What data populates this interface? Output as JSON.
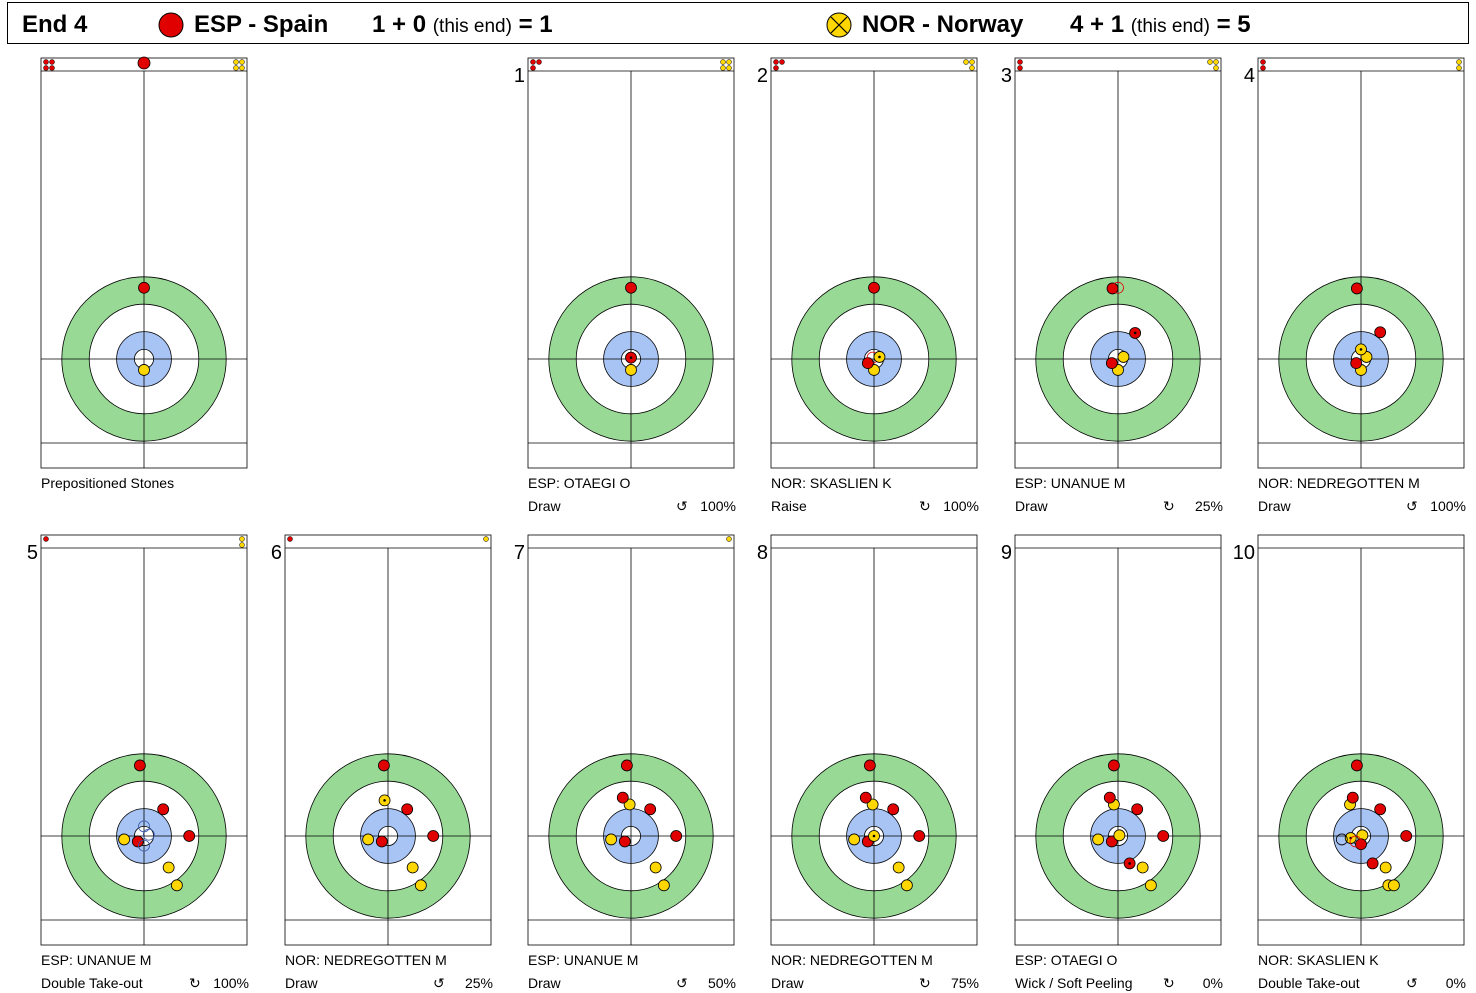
{
  "header": {
    "end_label": "End 4",
    "team1": {
      "name": "ESP - Spain",
      "score_text": "1 + 0",
      "this_end": "(this end)",
      "total": "= 1",
      "color": "#e00000"
    },
    "team2": {
      "name": "NOR - Norway",
      "score_text": "4 + 1",
      "this_end": "(this end)",
      "total": "= 5",
      "color": "#ffd700"
    }
  },
  "colors": {
    "ring_outer": "#99d996",
    "ring_inner": "#a8c4f4",
    "red_stone": "#e00000",
    "yellow_stone": "#ffd700"
  },
  "sheets": [
    {
      "number": "",
      "player": "Prepositioned Stones",
      "shot": "",
      "rotation": "",
      "pct": "",
      "remaining": {
        "red": 4,
        "yellow": 4
      },
      "stones": [
        {
          "team": "red",
          "x": 0,
          "y": -5.2
        },
        {
          "team": "yellow",
          "x": 0,
          "y": 0.8
        }
      ]
    },
    {
      "number": "1",
      "player": "ESP: OTAEGI O",
      "shot": "Draw",
      "rotation": "↺",
      "pct": "100%",
      "remaining": {
        "red": 3,
        "yellow": 4
      },
      "stones": [
        {
          "team": "red",
          "x": 0,
          "y": -5.2
        },
        {
          "team": "yellow",
          "x": 0,
          "y": 0.8
        },
        {
          "team": "red",
          "x": 0,
          "y": -0.1,
          "marked": true
        }
      ]
    },
    {
      "number": "2",
      "player": "NOR: SKASLIEN K",
      "shot": "Raise",
      "rotation": "↻",
      "pct": "100%",
      "remaining": {
        "red": 3,
        "yellow": 3
      },
      "stones": [
        {
          "team": "red",
          "x": 0,
          "y": -5.2
        },
        {
          "team": "yellow",
          "x": 0,
          "y": 0.8
        },
        {
          "team": "red",
          "x": -0.45,
          "y": 0.3
        },
        {
          "team": "red",
          "x": -0.1,
          "y": -0.1,
          "ghost": true
        },
        {
          "team": "yellow",
          "x": 0.4,
          "y": -0.15,
          "marked": true
        }
      ]
    },
    {
      "number": "3",
      "player": "ESP: UNANUE M",
      "shot": "Draw",
      "rotation": "↻",
      "pct": "25%",
      "remaining": {
        "red": 2,
        "yellow": 3
      },
      "stones": [
        {
          "team": "red",
          "x": -0.4,
          "y": -5.15
        },
        {
          "team": "red",
          "x": 0,
          "y": -5.2,
          "ghost": true
        },
        {
          "team": "red",
          "x": 1.25,
          "y": -1.9,
          "marked": true
        },
        {
          "team": "yellow",
          "x": 0,
          "y": 0.8
        },
        {
          "team": "yellow",
          "x": 0.4,
          "y": -0.15
        },
        {
          "team": "red",
          "x": -0.45,
          "y": 0.3
        }
      ]
    },
    {
      "number": "4",
      "player": "NOR: NEDREGOTTEN M",
      "shot": "Draw",
      "rotation": "↺",
      "pct": "100%",
      "remaining": {
        "red": 2,
        "yellow": 2
      },
      "stones": [
        {
          "team": "red",
          "x": -0.3,
          "y": -5.15
        },
        {
          "team": "red",
          "x": 1.4,
          "y": -1.95
        },
        {
          "team": "yellow",
          "x": 0,
          "y": 0.8
        },
        {
          "team": "yellow",
          "x": 0.4,
          "y": -0.15
        },
        {
          "team": "red",
          "x": -0.35,
          "y": 0.3
        },
        {
          "team": "yellow",
          "x": 0,
          "y": -0.7,
          "marked": true
        }
      ]
    },
    {
      "number": "5",
      "player": "ESP: UNANUE M",
      "shot": "Double Take-out",
      "rotation": "↻",
      "pct": "100%",
      "remaining": {
        "red": 1,
        "yellow": 2
      },
      "stones": [
        {
          "team": "red",
          "x": -0.3,
          "y": -5.15
        },
        {
          "team": "red",
          "x": 1.4,
          "y": -1.95
        },
        {
          "team": "red",
          "x": 3.3,
          "y": 0
        },
        {
          "team": "yellow",
          "x": -1.45,
          "y": 0.25
        },
        {
          "team": "red",
          "x": -0.45,
          "y": 0.4
        },
        {
          "team": "yellow",
          "x": 1.8,
          "y": 2.3
        },
        {
          "team": "yellow",
          "x": 2.4,
          "y": 3.6
        },
        {
          "team": "blue",
          "x": 0,
          "y": -0.7,
          "ghost": true
        },
        {
          "team": "blue",
          "x": 0.35,
          "y": -0.1,
          "ghost": true
        },
        {
          "team": "blue",
          "x": 0,
          "y": 0.7,
          "ghost": true
        }
      ]
    },
    {
      "number": "6",
      "player": "NOR: NEDREGOTTEN M",
      "shot": "Draw",
      "rotation": "↺",
      "pct": "25%",
      "remaining": {
        "red": 1,
        "yellow": 1
      },
      "stones": [
        {
          "team": "red",
          "x": -0.3,
          "y": -5.15
        },
        {
          "team": "red",
          "x": 1.4,
          "y": -1.95
        },
        {
          "team": "red",
          "x": 3.3,
          "y": 0
        },
        {
          "team": "yellow",
          "x": -1.45,
          "y": 0.25
        },
        {
          "team": "red",
          "x": -0.45,
          "y": 0.4
        },
        {
          "team": "yellow",
          "x": 1.8,
          "y": 2.3
        },
        {
          "team": "yellow",
          "x": 2.4,
          "y": 3.6
        },
        {
          "team": "yellow",
          "x": -0.25,
          "y": -2.6,
          "marked": true
        }
      ]
    },
    {
      "number": "7",
      "player": "ESP: UNANUE M",
      "shot": "Draw",
      "rotation": "↺",
      "pct": "50%",
      "remaining": {
        "red": 0,
        "yellow": 1
      },
      "stones": [
        {
          "team": "red",
          "x": -0.3,
          "y": -5.15
        },
        {
          "team": "red",
          "x": 1.4,
          "y": -1.95
        },
        {
          "team": "red",
          "x": 3.3,
          "y": 0
        },
        {
          "team": "yellow",
          "x": -1.45,
          "y": 0.25
        },
        {
          "team": "red",
          "x": -0.45,
          "y": 0.4
        },
        {
          "team": "yellow",
          "x": 1.8,
          "y": 2.3
        },
        {
          "team": "yellow",
          "x": 2.4,
          "y": 3.6
        },
        {
          "team": "yellow",
          "x": -0.1,
          "y": -2.3
        },
        {
          "team": "red",
          "x": -0.6,
          "y": -2.8
        }
      ]
    },
    {
      "number": "8",
      "player": "NOR: NEDREGOTTEN M",
      "shot": "Draw",
      "rotation": "↻",
      "pct": "75%",
      "remaining": {
        "red": 0,
        "yellow": 0
      },
      "stones": [
        {
          "team": "red",
          "x": -0.3,
          "y": -5.15
        },
        {
          "team": "red",
          "x": 1.4,
          "y": -1.95
        },
        {
          "team": "red",
          "x": 3.3,
          "y": 0
        },
        {
          "team": "yellow",
          "x": -1.45,
          "y": 0.25
        },
        {
          "team": "red",
          "x": -0.45,
          "y": 0.4
        },
        {
          "team": "yellow",
          "x": 1.8,
          "y": 2.3
        },
        {
          "team": "yellow",
          "x": 2.4,
          "y": 3.6
        },
        {
          "team": "yellow",
          "x": -0.1,
          "y": -2.3
        },
        {
          "team": "red",
          "x": -0.6,
          "y": -2.8
        },
        {
          "team": "yellow",
          "x": 0,
          "y": 0,
          "marked": true
        }
      ]
    },
    {
      "number": "9",
      "player": "ESP: OTAEGI O",
      "shot": "Wick / Soft Peeling",
      "rotation": "↻",
      "pct": "0%",
      "remaining": {
        "red": 0,
        "yellow": 0
      },
      "stones": [
        {
          "team": "red",
          "x": -0.3,
          "y": -5.15
        },
        {
          "team": "red",
          "x": 1.4,
          "y": -1.95
        },
        {
          "team": "red",
          "x": 3.3,
          "y": 0
        },
        {
          "team": "yellow",
          "x": -1.45,
          "y": 0.25
        },
        {
          "team": "red",
          "x": -0.45,
          "y": 0.4
        },
        {
          "team": "yellow",
          "x": 1.8,
          "y": 2.3
        },
        {
          "team": "yellow",
          "x": 2.4,
          "y": 3.6
        },
        {
          "team": "yellow",
          "x": -0.3,
          "y": -2.3
        },
        {
          "team": "red",
          "x": -0.6,
          "y": -2.8
        },
        {
          "team": "yellow",
          "x": 0.1,
          "y": -0.05
        },
        {
          "team": "red",
          "x": 0.85,
          "y": 2.0,
          "marked": true
        }
      ]
    },
    {
      "number": "10",
      "player": "NOR: SKASLIEN K",
      "shot": "Double Take-out",
      "rotation": "↺",
      "pct": "0%",
      "remaining": {
        "red": 0,
        "yellow": 0
      },
      "stones": [
        {
          "team": "red",
          "x": -0.3,
          "y": -5.15
        },
        {
          "team": "red",
          "x": 1.4,
          "y": -1.95
        },
        {
          "team": "red",
          "x": 3.3,
          "y": 0
        },
        {
          "team": "yellow",
          "x": -0.8,
          "y": -2.3
        },
        {
          "team": "red",
          "x": -0.6,
          "y": -2.8
        },
        {
          "team": "yellow",
          "x": 0.1,
          "y": -0.05
        },
        {
          "team": "red",
          "x": 0.85,
          "y": 2.0
        },
        {
          "team": "yellow",
          "x": 1.8,
          "y": 2.3
        },
        {
          "team": "yellow",
          "x": 2.0,
          "y": 3.6
        },
        {
          "team": "yellow",
          "x": 2.4,
          "y": 3.6
        },
        {
          "team": "red",
          "x": 0,
          "y": 0.6
        },
        {
          "team": "yellow",
          "x": -0.75,
          "y": 0.15,
          "marked": true
        },
        {
          "team": "white",
          "x": -1.4,
          "y": 0.25,
          "ghost": true
        },
        {
          "team": "red",
          "x": -0.4,
          "y": 0.4,
          "ghost": true
        }
      ]
    }
  ]
}
